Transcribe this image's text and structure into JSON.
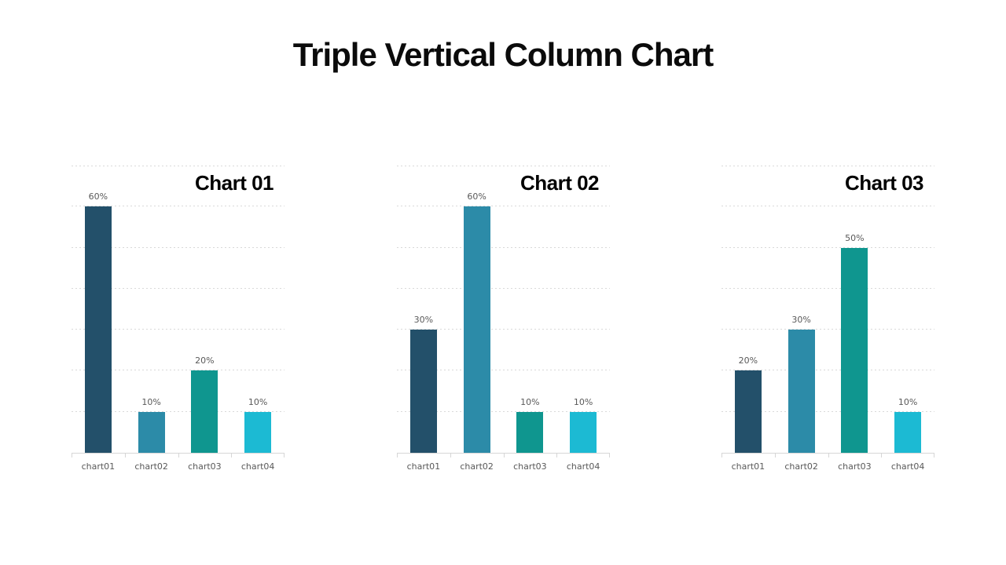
{
  "page": {
    "title": "Triple Vertical Column Chart",
    "background": "#ffffff"
  },
  "colors": {
    "series": [
      "#23506A",
      "#2C8BA8",
      "#0F968F",
      "#1CBAD3"
    ],
    "gridline": "#d9d9d9",
    "axis": "#d6d6d6",
    "label_text": "#595959",
    "title_text": "#0b0b0b"
  },
  "chart_data": [
    {
      "type": "bar",
      "title": "Chart 01",
      "categories": [
        "chart01",
        "chart02",
        "chart03",
        "chart04"
      ],
      "values": [
        60,
        10,
        20,
        10
      ],
      "value_labels": [
        "60%",
        "10%",
        "20%",
        "10%"
      ],
      "bar_colors": [
        "#23506A",
        "#2C8BA8",
        "#0F968F",
        "#1CBAD3"
      ],
      "ylim": [
        0,
        70
      ],
      "grid_step": 10,
      "grid": "dashed-horizontal",
      "legend": "none",
      "xlabel": "",
      "ylabel": ""
    },
    {
      "type": "bar",
      "title": "Chart 02",
      "categories": [
        "chart01",
        "chart02",
        "chart03",
        "chart04"
      ],
      "values": [
        30,
        60,
        10,
        10
      ],
      "value_labels": [
        "30%",
        "60%",
        "10%",
        "10%"
      ],
      "bar_colors": [
        "#23506A",
        "#2C8BA8",
        "#0F968F",
        "#1CBAD3"
      ],
      "ylim": [
        0,
        70
      ],
      "grid_step": 10,
      "grid": "dashed-horizontal",
      "legend": "none",
      "xlabel": "",
      "ylabel": ""
    },
    {
      "type": "bar",
      "title": "Chart 03",
      "categories": [
        "chart01",
        "chart02",
        "chart03",
        "chart04"
      ],
      "values": [
        20,
        30,
        50,
        10
      ],
      "value_labels": [
        "20%",
        "30%",
        "50%",
        "10%"
      ],
      "bar_colors": [
        "#23506A",
        "#2C8BA8",
        "#0F968F",
        "#1CBAD3"
      ],
      "ylim": [
        0,
        70
      ],
      "grid_step": 10,
      "grid": "dashed-horizontal",
      "legend": "none",
      "xlabel": "",
      "ylabel": ""
    }
  ]
}
